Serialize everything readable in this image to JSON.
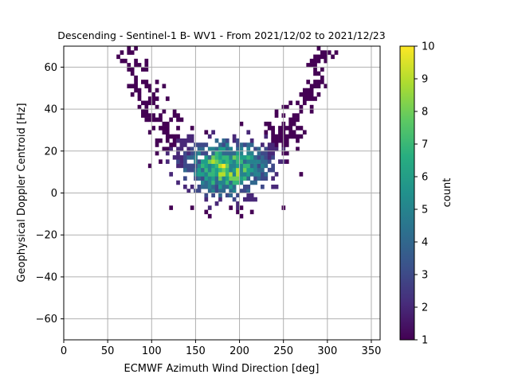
{
  "chart_data": {
    "type": "heatmap",
    "title": "Descending - Sentinel-1 B- WV1 - From 2021/12/02 to 2021/12/23",
    "xlabel": "ECMWF Azimuth Wind Direction [deg]",
    "ylabel": "Geophysical Doppler Centroid [Hz]",
    "xlim": [
      0,
      360
    ],
    "ylim": [
      -70,
      70
    ],
    "xticks": [
      0,
      50,
      100,
      150,
      200,
      250,
      300,
      350
    ],
    "yticks": [
      -60,
      -40,
      -20,
      0,
      20,
      40,
      60
    ],
    "grid": true,
    "bin_width_x": 4,
    "bin_height_y": 2,
    "colorbar": {
      "label": "count",
      "colormap": "viridis",
      "range": [
        1,
        10
      ],
      "ticks": [
        1,
        2,
        3,
        4,
        5,
        6,
        7,
        8,
        9,
        10
      ]
    },
    "distribution": {
      "description_type": "V-shaped density",
      "center_direction": 185,
      "center_doppler": 12,
      "peak_count": 10
    }
  }
}
